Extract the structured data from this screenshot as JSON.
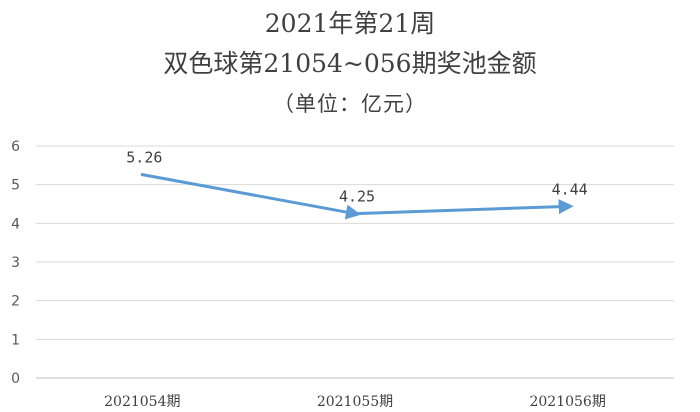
{
  "chart_data": {
    "type": "line",
    "title": "2021年第21周",
    "subtitle": "双色球第21054~056期奖池金额",
    "unit_note": "（单位：亿元）",
    "categories": [
      "2021054期",
      "2021055期",
      "2021056期"
    ],
    "series": [
      {
        "values": [
          5.26,
          4.25,
          4.44
        ],
        "color": "#5b9bd5"
      }
    ],
    "data_labels": [
      "5.26",
      "4.25",
      "4.44"
    ],
    "y_ticks": [
      "0",
      "1",
      "2",
      "3",
      "4",
      "5",
      "6"
    ],
    "ylim": [
      0,
      6
    ],
    "grid": true,
    "legend": "none"
  }
}
